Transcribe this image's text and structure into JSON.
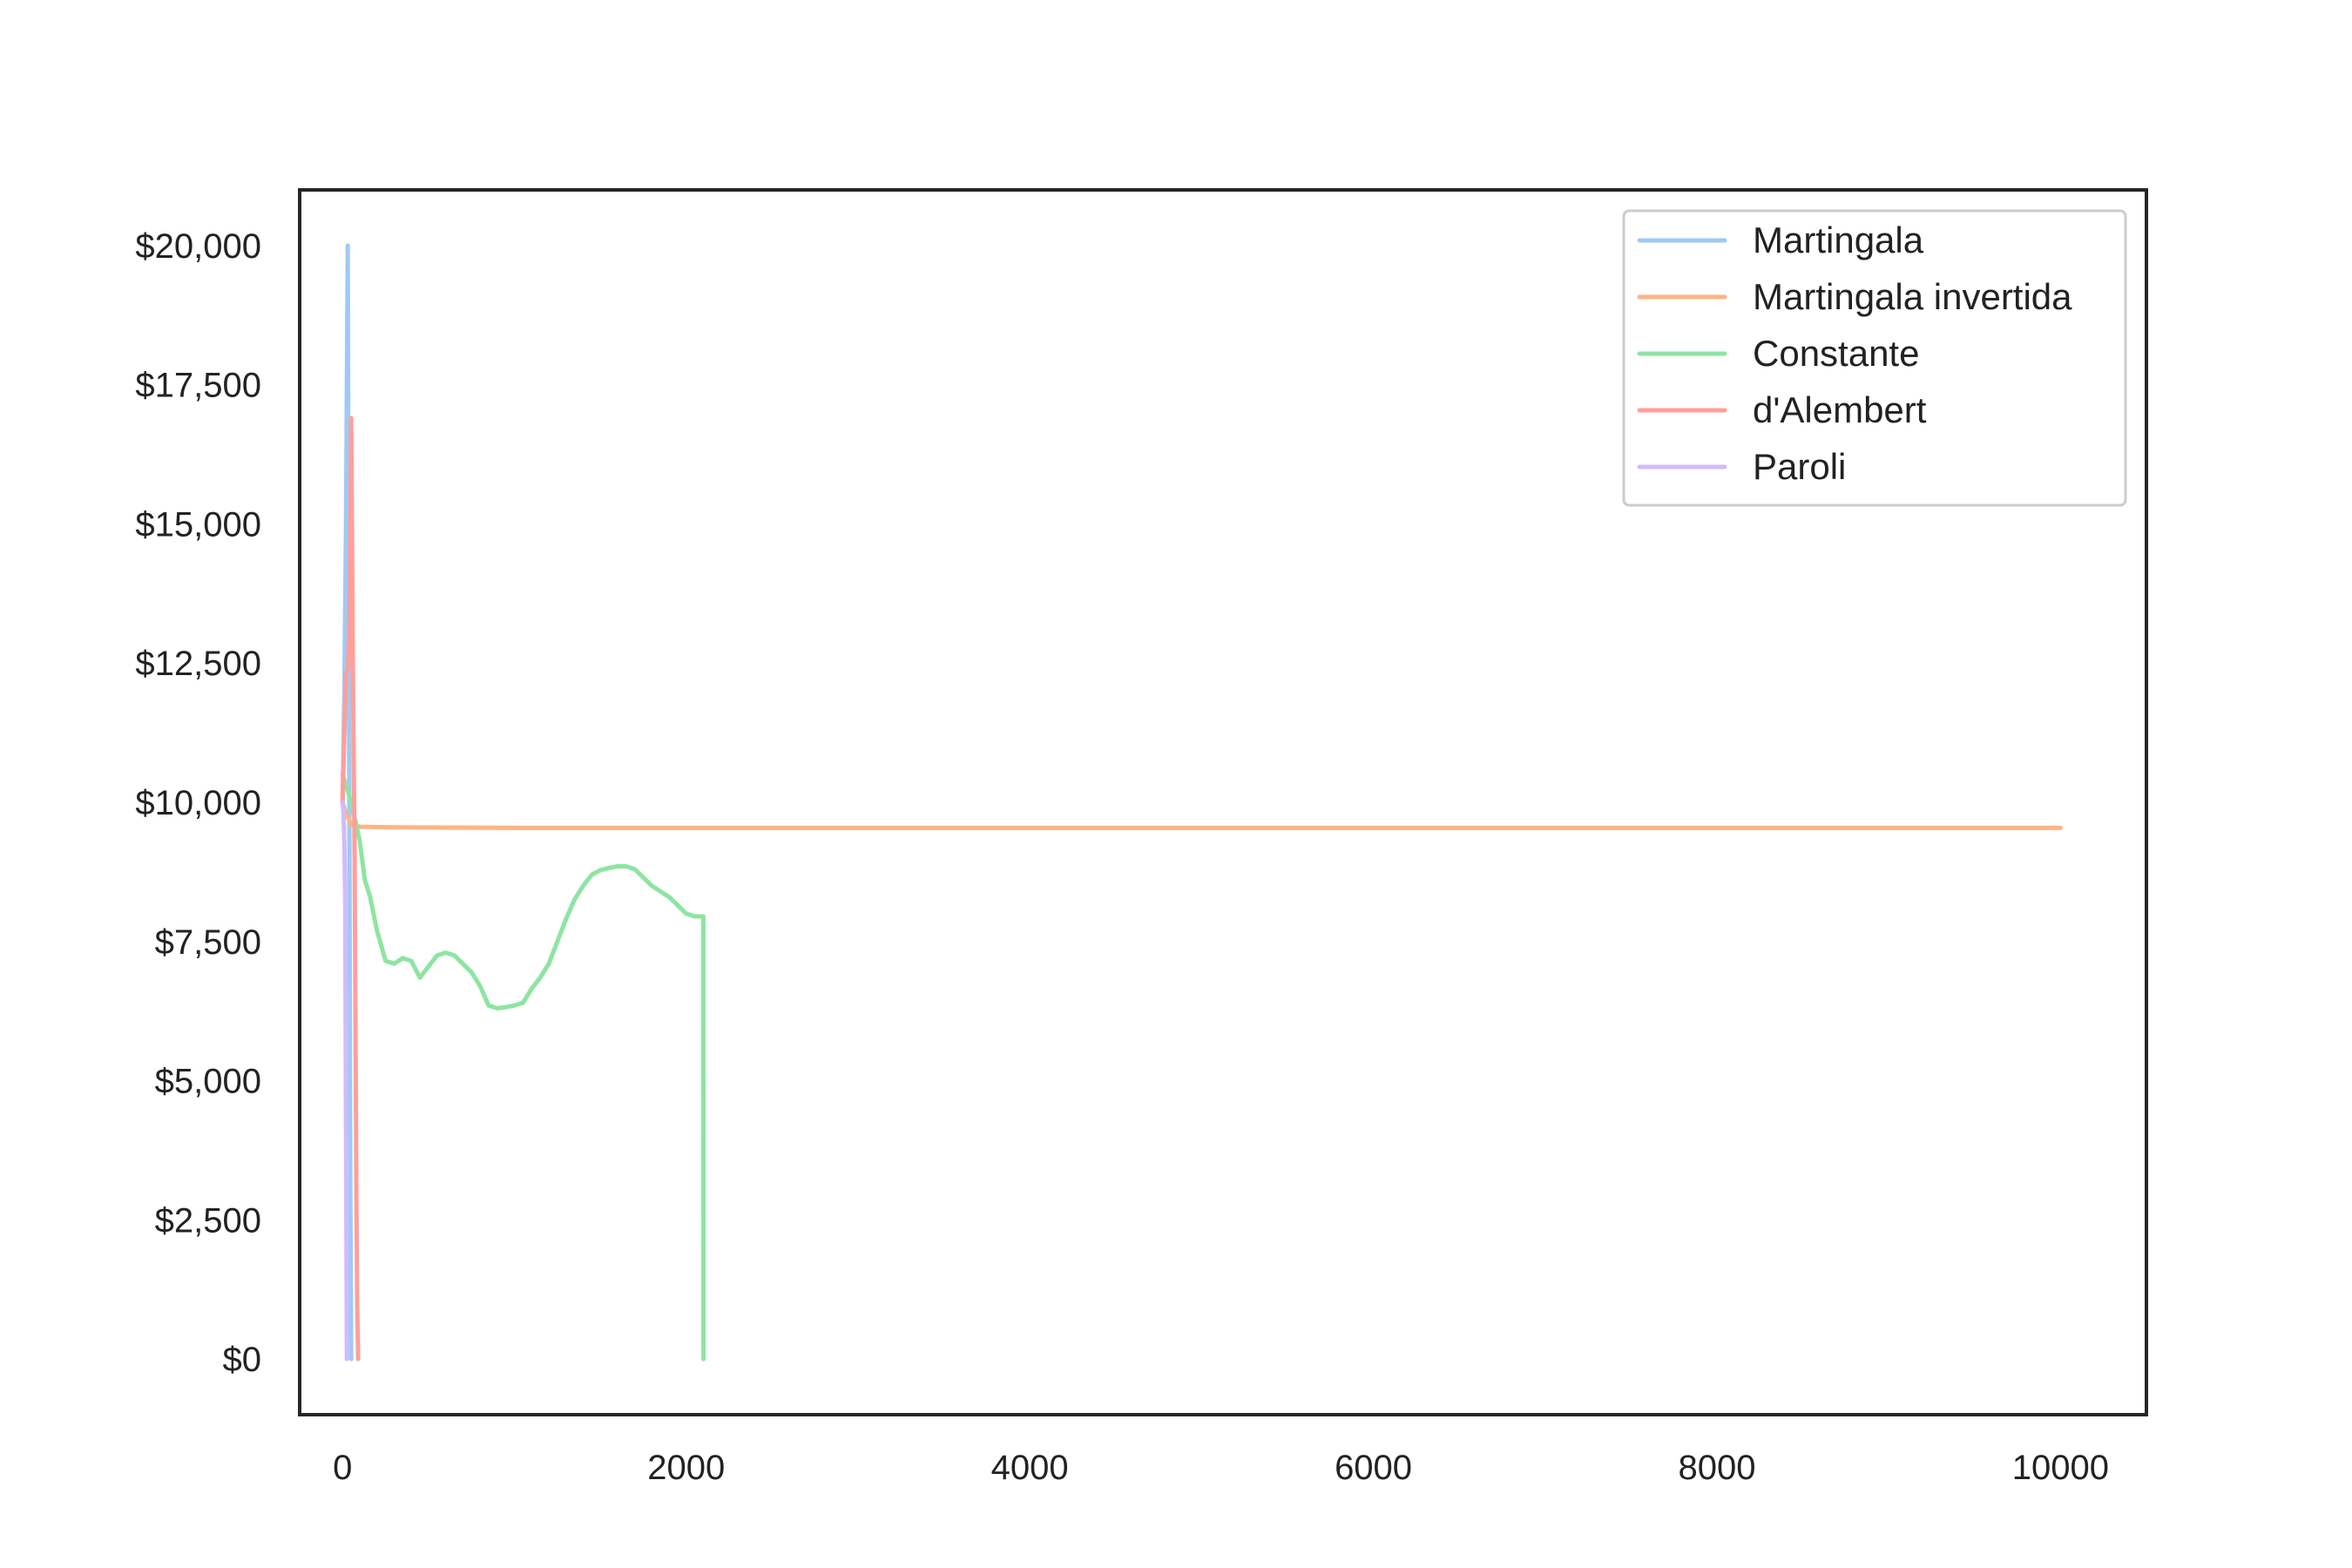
{
  "chart_data": {
    "type": "line",
    "title": "",
    "xlabel": "",
    "ylabel": "",
    "xlim": [
      -250,
      10500
    ],
    "ylim": [
      -1000,
      21000
    ],
    "x_ticks": [
      0,
      2000,
      4000,
      6000,
      8000,
      10000
    ],
    "x_tick_labels": [
      "0",
      "2000",
      "4000",
      "6000",
      "8000",
      "10000"
    ],
    "y_ticks": [
      0,
      2500,
      5000,
      7500,
      10000,
      12500,
      15000,
      17500,
      20000
    ],
    "y_tick_labels": [
      "$0",
      "$2,500",
      "$5,000",
      "$7,500",
      "$10,000",
      "$12,500",
      "$15,000",
      "$17,500",
      "$20,000"
    ],
    "grid": false,
    "legend_position": "top-right",
    "series": [
      {
        "name": "Martingala",
        "color": "#a1c9f4",
        "x": [
          0,
          10,
          20,
          30,
          35,
          40,
          45,
          50
        ],
        "y": [
          10000,
          12000,
          15000,
          20000,
          14000,
          9000,
          3000,
          0
        ]
      },
      {
        "name": "Martingala invertida",
        "color": "#ffb482",
        "x": [
          0,
          20,
          50,
          100,
          300,
          1000,
          5000,
          10000
        ],
        "y": [
          10000,
          9800,
          9600,
          9560,
          9550,
          9540,
          9540,
          9540
        ]
      },
      {
        "name": "Constante",
        "color": "#8de5a1",
        "x": [
          0,
          50,
          100,
          130,
          160,
          200,
          250,
          300,
          350,
          400,
          450,
          500,
          550,
          600,
          650,
          700,
          750,
          800,
          850,
          900,
          950,
          1000,
          1050,
          1100,
          1150,
          1200,
          1250,
          1300,
          1350,
          1400,
          1450,
          1500,
          1550,
          1600,
          1650,
          1700,
          1750,
          1800,
          1850,
          1900,
          1950,
          2000,
          2050,
          2100,
          2101
        ],
        "y": [
          10500,
          10000,
          9300,
          8600,
          8300,
          7700,
          7150,
          7100,
          7200,
          7150,
          6850,
          7050,
          7250,
          7300,
          7250,
          7100,
          6950,
          6700,
          6350,
          6300,
          6320,
          6350,
          6400,
          6650,
          6850,
          7100,
          7500,
          7900,
          8250,
          8500,
          8700,
          8780,
          8820,
          8850,
          8850,
          8800,
          8650,
          8500,
          8400,
          8300,
          8150,
          8000,
          7950,
          7950,
          0
        ]
      },
      {
        "name": "d'Alembert",
        "color": "#ff9f9b",
        "x": [
          0,
          10,
          20,
          30,
          40,
          50,
          60,
          70,
          75,
          80,
          85,
          90
        ],
        "y": [
          10000,
          11200,
          12300,
          12400,
          13000,
          16900,
          12500,
          9000,
          6000,
          3000,
          1000,
          0
        ]
      },
      {
        "name": "Paroli",
        "color": "#d0bbff",
        "x": [
          0,
          5,
          10,
          15,
          20,
          25
        ],
        "y": [
          10000,
          9800,
          9300,
          8200,
          4000,
          0
        ]
      }
    ]
  }
}
